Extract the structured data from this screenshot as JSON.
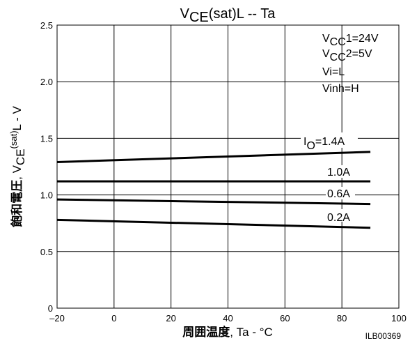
{
  "chart_data": {
    "type": "line",
    "title": {
      "main": "V",
      "sub": "CE",
      "rest": "(sat)L  --  Ta"
    },
    "xlabel": {
      "bold": "周囲温度",
      "rest": ", Ta - °C"
    },
    "ylabel": {
      "bold": "飽和電圧",
      "rest1": ", V",
      "sub": "CE",
      "sup": "(sat)",
      "rest2": "L  -  V"
    },
    "xlim": [
      -20,
      100
    ],
    "ylim": [
      0,
      2.5
    ],
    "xticks": [
      "–20",
      "0",
      "20",
      "40",
      "60",
      "80",
      "100"
    ],
    "yticks": [
      "0",
      "0.5",
      "1.0",
      "1.5",
      "2.0",
      "2.5"
    ],
    "grid": true,
    "conditions": [
      {
        "main": "V",
        "sub": "CC",
        "rest": "1=24V"
      },
      {
        "main": "V",
        "sub": "CC",
        "rest": "2=5V"
      },
      {
        "main": "Vi=L"
      },
      {
        "main": "Vinh=H"
      }
    ],
    "series": [
      {
        "name": "=1.4A",
        "prefix": "I",
        "prefix_sub": "O",
        "x": [
          -20,
          90
        ],
        "y": [
          1.29,
          1.38
        ]
      },
      {
        "name": "1.0A",
        "x": [
          -20,
          90
        ],
        "y": [
          1.12,
          1.12
        ]
      },
      {
        "name": "0.6A",
        "x": [
          -20,
          90
        ],
        "y": [
          0.96,
          0.92
        ]
      },
      {
        "name": "0.2A",
        "x": [
          -20,
          90
        ],
        "y": [
          0.78,
          0.71
        ]
      }
    ],
    "figure_id": "ILB00369"
  }
}
